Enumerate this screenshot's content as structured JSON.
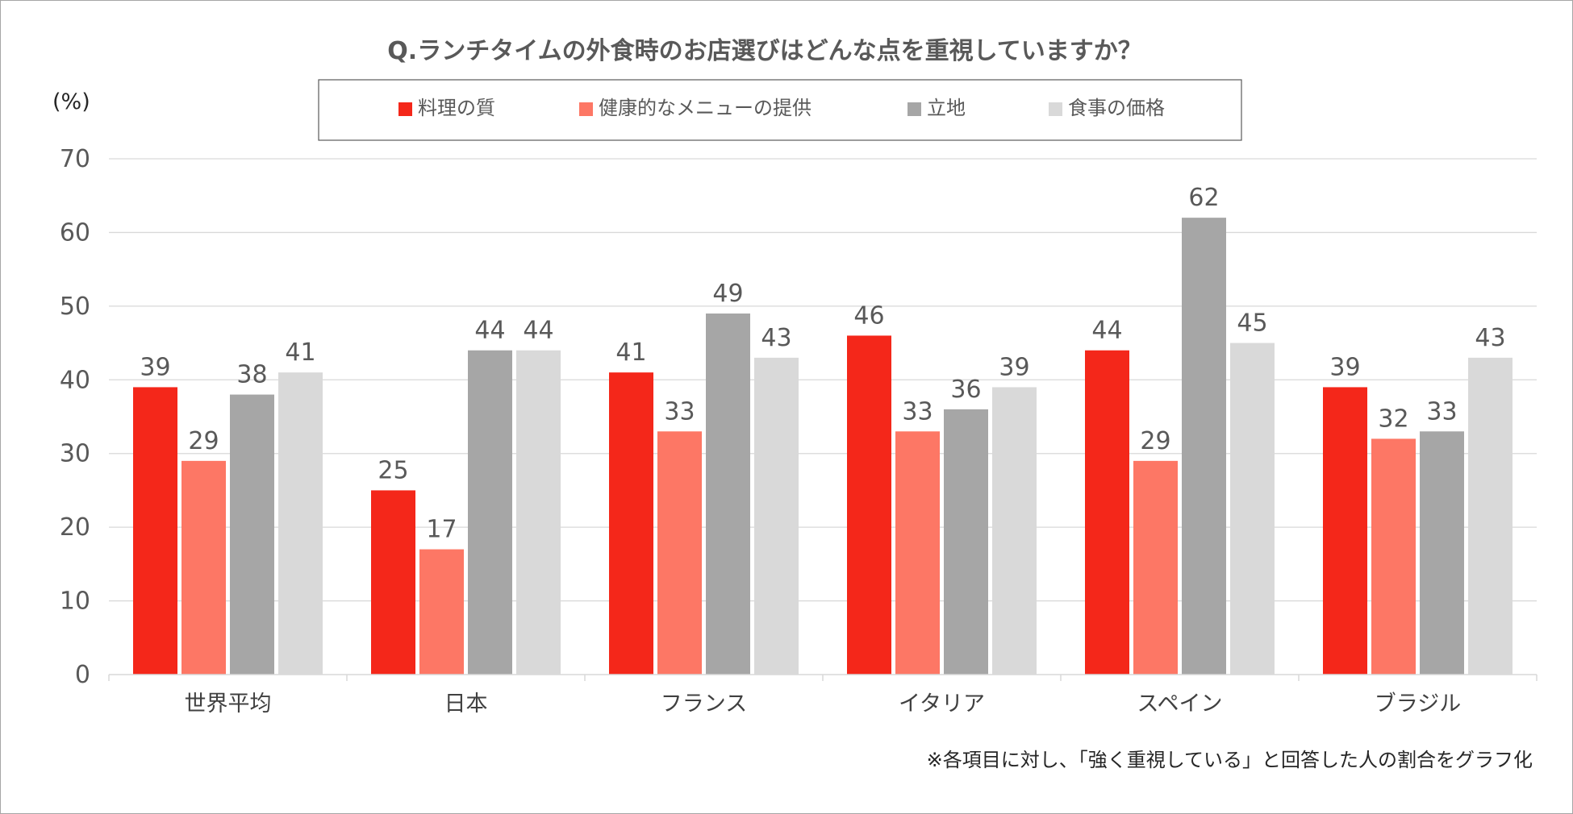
{
  "chart_data": {
    "type": "bar",
    "title": "Q.ランチタイムの外食時のお店選びはどんな点を重視していますか？",
    "ylabel": "(%)",
    "xlabel": "",
    "ylim": [
      0,
      70
    ],
    "yticks": [
      0,
      10,
      20,
      30,
      40,
      50,
      60,
      70
    ],
    "grid": true,
    "legend_position": "top-center",
    "categories": [
      "世界平均",
      "日本",
      "フランス",
      "イタリア",
      "スペイン",
      "ブラジル"
    ],
    "series": [
      {
        "name": "料理の質",
        "color": "#f4271a",
        "values": [
          39,
          25,
          41,
          46,
          44,
          39
        ]
      },
      {
        "name": "健康的なメニューの提供",
        "color": "#fd7765",
        "values": [
          29,
          17,
          33,
          33,
          29,
          32
        ]
      },
      {
        "name": "立地",
        "color": "#a6a6a6",
        "values": [
          38,
          44,
          49,
          36,
          62,
          33
        ]
      },
      {
        "name": "食事の価格",
        "color": "#d9d9d9",
        "values": [
          41,
          44,
          43,
          39,
          45,
          43
        ]
      }
    ],
    "note": "※各項目に対し、「強く重視している」と回答した人の割合をグラフ化"
  }
}
